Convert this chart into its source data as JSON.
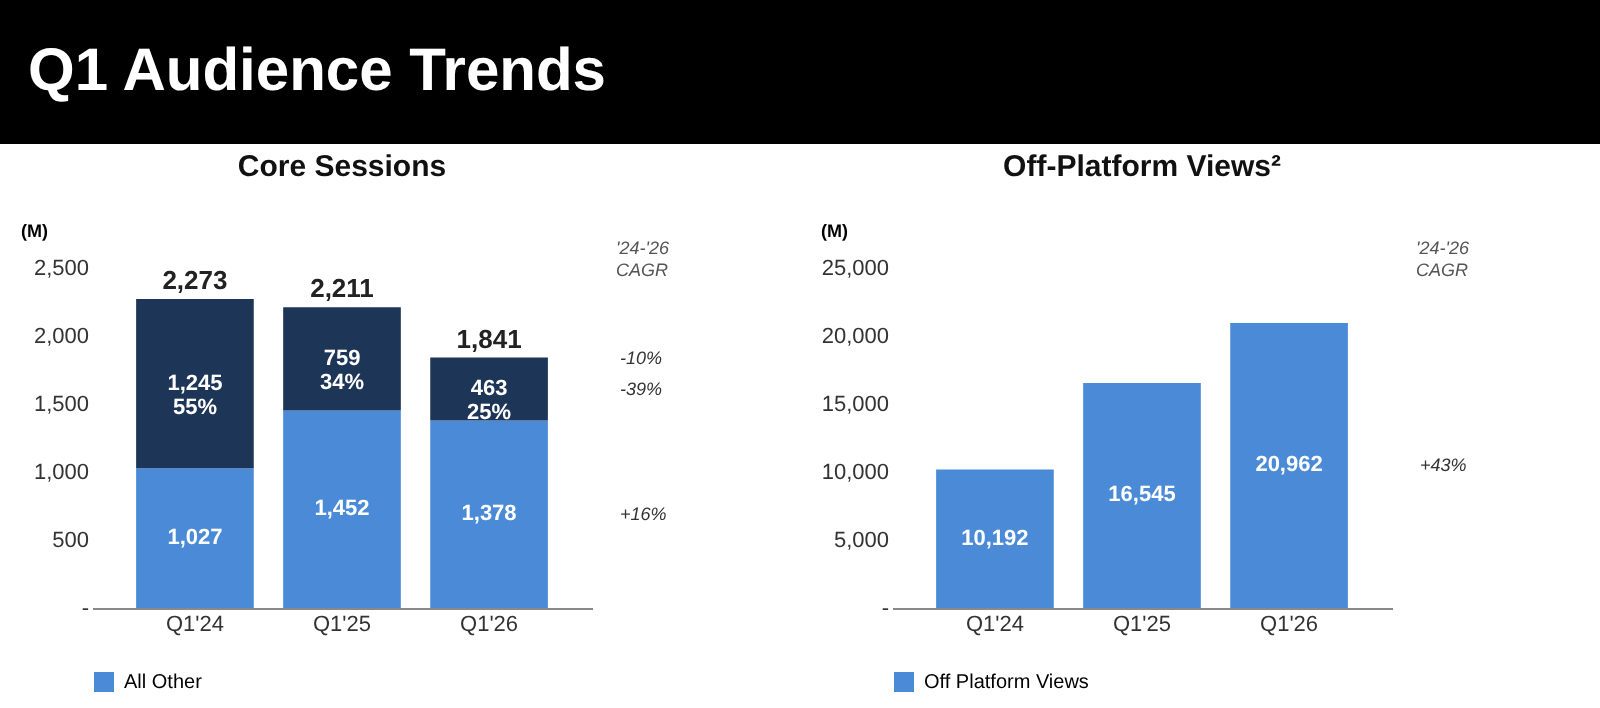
{
  "chart_data": [
    {
      "type": "bar",
      "title": "Q1 Audience Trends",
      "subtitle": "Core Sessions",
      "ylabel": "(M)",
      "categories": [
        "Q1'24",
        "Q1'25",
        "Q1'26"
      ],
      "stacked": true,
      "series": [
        {
          "name": "All Other",
          "color": "#4a8ad6",
          "values": [
            1027,
            1452,
            1378
          ],
          "value_labels": [
            "1,027",
            "1,452",
            "1,378"
          ]
        },
        {
          "color": "#1d3557",
          "values": [
            1245,
            759,
            463
          ],
          "value_labels": [
            "1,245\n55%",
            "759\n34%",
            "463\n25%"
          ]
        }
      ],
      "totals": [
        "2,273",
        "2,211",
        "1,841"
      ],
      "ylim": [
        0,
        2500
      ],
      "yticks": [
        {
          "value": 0,
          "label": "-"
        },
        500,
        {
          "value": 1000,
          "label": "1,000"
        },
        {
          "value": 1500,
          "label": "1,500"
        },
        {
          "value": 2000,
          "label": "2,000"
        },
        {
          "value": 2500,
          "label": "2,500"
        }
      ],
      "grid": false,
      "legend": "bottom",
      "annotations": [
        "'24-'26\nCAGR",
        "-10%",
        "-39%",
        "+16%"
      ]
    },
    {
      "type": "bar",
      "title": "Off-Platform Views²",
      "ylabel": "(M)",
      "categories": [
        "Q1'24",
        "Q1'25",
        "Q1'26"
      ],
      "series": [
        {
          "name": "Off Platform Views",
          "color": "#4a8ad6",
          "values": [
            10192,
            16545,
            20962
          ],
          "value_labels": [
            "10,192",
            "16,545",
            "20,962"
          ]
        }
      ],
      "ylim": [
        0,
        25000
      ],
      "yticks": [
        {
          "value": 0,
          "label": "-"
        },
        {
          "value": 5000,
          "label": "5,000"
        },
        {
          "value": 10000,
          "label": "10,000"
        },
        {
          "value": 15000,
          "label": "15,000"
        },
        {
          "value": 20000,
          "label": "20,000"
        },
        {
          "value": 25000,
          "label": "25,000"
        }
      ],
      "grid": false,
      "legend": "bottom",
      "annotations": [
        "'24-'26\nCAGR",
        "+43%"
      ]
    }
  ]
}
